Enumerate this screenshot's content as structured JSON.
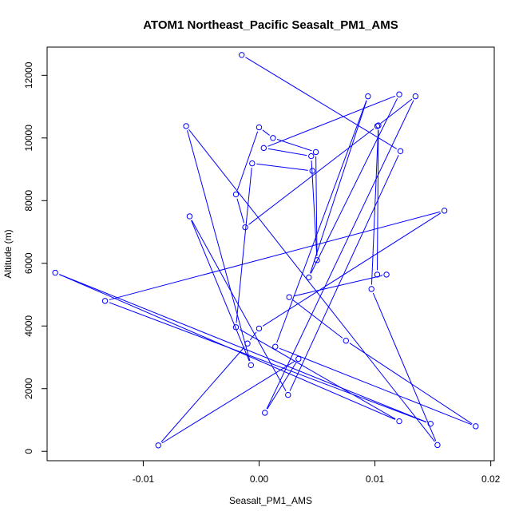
{
  "chart_data": {
    "type": "line",
    "title": "ATOM1 Northeast_Pacific Seasalt_PM1_AMS",
    "xlabel": "Seasalt_PM1_AMS",
    "ylabel": "Altitude (m)",
    "xlim": [
      -0.0183,
      0.0203
    ],
    "ylim": [
      -300,
      12900
    ],
    "x_ticks": [
      -0.01,
      0.0,
      0.01,
      0.02
    ],
    "x_tick_labels": [
      "-0.01",
      "0.00",
      "0.01",
      "0.02"
    ],
    "y_ticks": [
      0,
      2000,
      4000,
      6000,
      8000,
      10000,
      12000
    ],
    "y_tick_labels": [
      "0",
      "2000",
      "4000",
      "6000",
      "8000",
      "10000",
      "12000"
    ],
    "grid": false,
    "legend": "none",
    "series_color": "#0000ff",
    "markers": "open-circle",
    "series": [
      {
        "points": [
          {
            "x": -0.0015,
            "y": 12650
          },
          {
            "x": 0.0122,
            "y": 9580
          },
          {
            "x": 0.0025,
            "y": 1800
          },
          {
            "x": -0.006,
            "y": 7500
          },
          {
            "x": -0.0007,
            "y": 2750
          },
          {
            "x": -0.0063,
            "y": 10380
          },
          {
            "x": 0.0154,
            "y": 200
          },
          {
            "x": 0.0097,
            "y": 5180
          },
          {
            "x": 0.0103,
            "y": 10400
          },
          {
            "x": 0.0102,
            "y": 5640
          },
          {
            "x": 0.011,
            "y": 5640
          },
          {
            "x": 0.0026,
            "y": 4920
          },
          {
            "x": 0.0075,
            "y": 3530
          },
          {
            "x": 0.0187,
            "y": 800
          },
          {
            "x": 0.0014,
            "y": 3340
          },
          {
            "x": 0.0094,
            "y": 11330
          },
          {
            "x": 0.0043,
            "y": 5550
          },
          {
            "x": 0.0121,
            "y": 11390
          },
          {
            "x": 0.0004,
            "y": 9680
          },
          {
            "x": 0.0045,
            "y": 9420
          },
          {
            "x": 0.005,
            "y": 6100
          },
          {
            "x": 0.0049,
            "y": 9550
          },
          {
            "x": 0.0012,
            "y": 10000
          },
          {
            "x": 0.0,
            "y": 10340
          },
          {
            "x": -0.002,
            "y": 8200
          },
          {
            "x": -0.0012,
            "y": 7150
          },
          {
            "x": 0.0102,
            "y": 10380
          },
          {
            "x": 0.0135,
            "y": 11330
          },
          {
            "x": 0.0005,
            "y": 1230
          },
          {
            "x": 0.0034,
            "y": 2950
          },
          {
            "x": -0.0087,
            "y": 190
          },
          {
            "x": -0.001,
            "y": 3440
          },
          {
            "x": 0.0,
            "y": 3920
          },
          {
            "x": 0.016,
            "y": 7680
          },
          {
            "x": -0.0133,
            "y": 4800
          },
          {
            "x": 0.0148,
            "y": 880
          },
          {
            "x": -0.0176,
            "y": 5700
          },
          {
            "x": 0.0121,
            "y": 960
          },
          {
            "x": -0.002,
            "y": 3960
          },
          {
            "x": -0.0006,
            "y": 9190
          },
          {
            "x": 0.0046,
            "y": 8950
          }
        ]
      }
    ]
  }
}
